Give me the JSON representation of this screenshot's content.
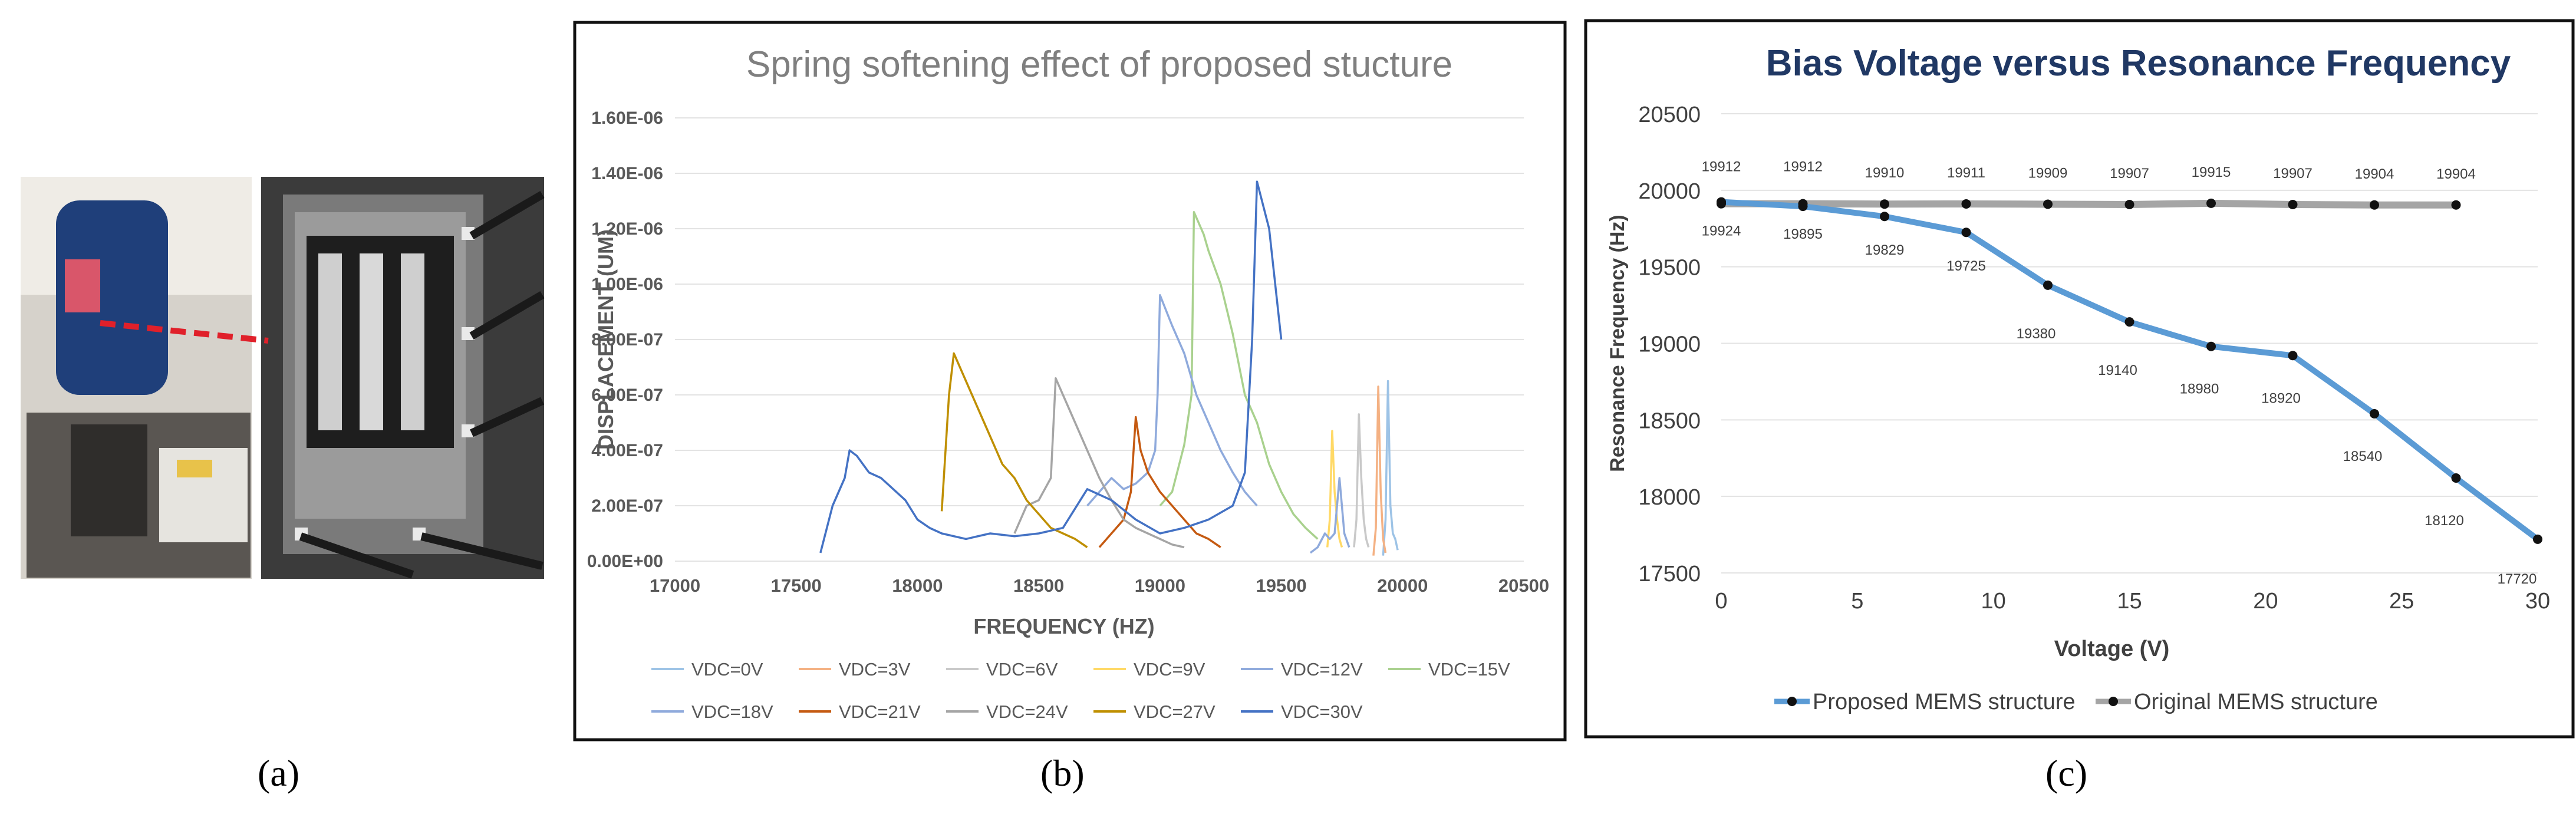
{
  "panel_a": {
    "caption": "(a)",
    "photo_setup": "laser vibrometer setup photo",
    "photo_device": "MEMS device micrograph"
  },
  "captions": {
    "b": "(b)",
    "c": "(c)"
  },
  "chart_data": [
    {
      "type": "line",
      "title": "Spring softening effect of proposed stucture",
      "xlabel": "FREQUENCY (HZ)",
      "ylabel": "DISPLACEMENT (UM)",
      "xlim": [
        17000,
        20500
      ],
      "x_ticks": [
        "17000",
        "17500",
        "18000",
        "18500",
        "19000",
        "19500",
        "20000",
        "20500"
      ],
      "ylim": [
        0,
        1.6e-06
      ],
      "y_ticks": [
        "0.00E+00",
        "2.00E-07",
        "4.00E-07",
        "6.00E-07",
        "8.00E-07",
        "1.00E-06",
        "1.20E-06",
        "1.40E-06",
        "1.60E-06"
      ],
      "grid": true,
      "legend_position": "bottom",
      "series": [
        {
          "name": "VDC=0V",
          "color": "#9dc3e6",
          "x": [
            19920,
            19930,
            19940,
            19950,
            19960,
            19970,
            19980
          ],
          "y": [
            2e-08,
            1.5e-07,
            6.5e-07,
            2e-07,
            1e-07,
            8e-08,
            4e-08
          ]
        },
        {
          "name": "VDC=3V",
          "color": "#f4b183",
          "x": [
            19880,
            19890,
            19900,
            19910,
            19920,
            19930
          ],
          "y": [
            2e-08,
            1.2e-07,
            6.3e-07,
            2.5e-07,
            8e-08,
            3e-08
          ]
        },
        {
          "name": "VDC=6V",
          "color": "#c9c9c9",
          "x": [
            19800,
            19810,
            19820,
            19830,
            19840,
            19850,
            19860
          ],
          "y": [
            5e-08,
            1.5e-07,
            5.3e-07,
            3e-07,
            1.5e-07,
            8e-08,
            5e-08
          ]
        },
        {
          "name": "VDC=9V",
          "color": "#ffd966",
          "x": [
            19690,
            19700,
            19710,
            19720,
            19730,
            19740,
            19750
          ],
          "y": [
            5e-08,
            1.5e-07,
            4.7e-07,
            2.5e-07,
            1.5e-07,
            8e-08,
            5e-08
          ]
        },
        {
          "name": "VDC=12V",
          "color": "#8faadc",
          "x": [
            19620,
            19650,
            19680,
            19700,
            19720,
            19740,
            19760,
            19780
          ],
          "y": [
            3e-08,
            5e-08,
            1e-07,
            8e-08,
            1e-07,
            3e-07,
            1e-07,
            5e-08
          ]
        },
        {
          "name": "VDC=15V",
          "color": "#a9d18e",
          "x": [
            19000,
            19050,
            19100,
            19130,
            19140,
            19160,
            19180,
            19200,
            19250,
            19300,
            19350,
            19400,
            19450,
            19500,
            19550,
            19600,
            19650
          ],
          "y": [
            2e-07,
            2.5e-07,
            4.2e-07,
            6e-07,
            1.26e-06,
            1.22e-06,
            1.18e-06,
            1.12e-06,
            1e-06,
            8.2e-07,
            6e-07,
            5e-07,
            3.5e-07,
            2.5e-07,
            1.7e-07,
            1.2e-07,
            8e-08
          ]
        },
        {
          "name": "VDC=18V",
          "color": "#8faadc",
          "x": [
            18700,
            18750,
            18800,
            18850,
            18900,
            18950,
            18980,
            18990,
            19000,
            19050,
            19100,
            19150,
            19200,
            19250,
            19300,
            19350,
            19400
          ],
          "y": [
            2e-07,
            2.5e-07,
            3e-07,
            2.6e-07,
            2.8e-07,
            3.2e-07,
            4e-07,
            6e-07,
            9.6e-07,
            8.5e-07,
            7.5e-07,
            6e-07,
            5e-07,
            4e-07,
            3.2e-07,
            2.5e-07,
            2e-07
          ]
        },
        {
          "name": "VDC=21V",
          "color": "#c55a11",
          "x": [
            18750,
            18800,
            18850,
            18880,
            18900,
            18920,
            18950,
            19000,
            19050,
            19100,
            19150,
            19200,
            19250
          ],
          "y": [
            5e-08,
            1e-07,
            1.5e-07,
            2.5e-07,
            5.2e-07,
            4e-07,
            3.2e-07,
            2.5e-07,
            2e-07,
            1.5e-07,
            1e-07,
            8e-08,
            5e-08
          ]
        },
        {
          "name": "VDC=24V",
          "color": "#a5a5a5",
          "x": [
            18400,
            18450,
            18500,
            18550,
            18570,
            18600,
            18650,
            18700,
            18750,
            18800,
            18850,
            18900,
            18950,
            19000,
            19050,
            19100
          ],
          "y": [
            1e-07,
            2e-07,
            2.2e-07,
            3e-07,
            6.6e-07,
            6e-07,
            5e-07,
            4e-07,
            3e-07,
            2.2e-07,
            1.5e-07,
            1.2e-07,
            1e-07,
            8e-08,
            6e-08,
            5e-08
          ]
        },
        {
          "name": "VDC=27V",
          "color": "#bf8f00",
          "x": [
            18100,
            18130,
            18150,
            18200,
            18250,
            18300,
            18350,
            18400,
            18450,
            18500,
            18550,
            18600,
            18650,
            18700
          ],
          "y": [
            1.8e-07,
            6e-07,
            7.5e-07,
            6.5e-07,
            5.5e-07,
            4.5e-07,
            3.5e-07,
            3e-07,
            2.2e-07,
            1.7e-07,
            1.2e-07,
            1e-07,
            8e-08,
            5e-08
          ]
        },
        {
          "name": "VDC=30V",
          "color": "#4472c4",
          "x": [
            17600,
            17650,
            17700,
            17720,
            17750,
            17800,
            17850,
            17900,
            17950,
            18000,
            18050,
            18100,
            18200,
            18300,
            18400,
            18500,
            18600,
            18700,
            18800,
            18900,
            19000,
            19100,
            19200,
            19300,
            19350,
            19380,
            19400,
            19450,
            19500
          ],
          "y": [
            3e-08,
            2e-07,
            3e-07,
            4e-07,
            3.8e-07,
            3.2e-07,
            3e-07,
            2.6e-07,
            2.2e-07,
            1.5e-07,
            1.2e-07,
            1e-07,
            8e-08,
            1e-07,
            9e-08,
            1e-07,
            1.2e-07,
            2.6e-07,
            2.2e-07,
            1.5e-07,
            1e-07,
            1.2e-07,
            1.5e-07,
            2e-07,
            3.2e-07,
            8e-07,
            1.37e-06,
            1.2e-06,
            8e-07
          ]
        }
      ]
    },
    {
      "type": "line",
      "title": "Bias Voltage versus Resonance Frequency",
      "xlabel": "Voltage (V)",
      "ylabel": "Resonance Frequency (Hz)",
      "xlim": [
        0,
        30
      ],
      "x_ticks": [
        "0",
        "5",
        "10",
        "15",
        "20",
        "25",
        "30"
      ],
      "ylim": [
        17500,
        20500
      ],
      "y_ticks": [
        "17500",
        "18000",
        "18500",
        "19000",
        "19500",
        "20000",
        "20500"
      ],
      "grid": true,
      "legend_position": "bottom",
      "series": [
        {
          "name": "Proposed MEMS structure",
          "color": "#5b9bd5",
          "x": [
            0,
            3,
            6,
            9,
            12,
            15,
            18,
            21,
            24,
            27,
            30
          ],
          "y": [
            19924,
            19895,
            19829,
            19725,
            19380,
            19140,
            18980,
            18920,
            18540,
            18120,
            17720
          ]
        },
        {
          "name": "Original MEMS structure",
          "color": "#a5a5a5",
          "x": [
            0,
            3,
            6,
            9,
            12,
            15,
            18,
            21,
            24,
            27
          ],
          "y": [
            19912,
            19912,
            19910,
            19911,
            19909,
            19907,
            19915,
            19907,
            19904,
            19904
          ]
        }
      ],
      "labels_proposed": [
        "19924",
        "19895",
        "19829",
        "19725",
        "19380",
        "19140",
        "18980",
        "18920",
        "18540",
        "18120",
        "17720"
      ],
      "labels_original": [
        "19912",
        "19912",
        "19910",
        "19911",
        "19909",
        "19907",
        "19915",
        "19907",
        "19904",
        "19904"
      ]
    }
  ]
}
